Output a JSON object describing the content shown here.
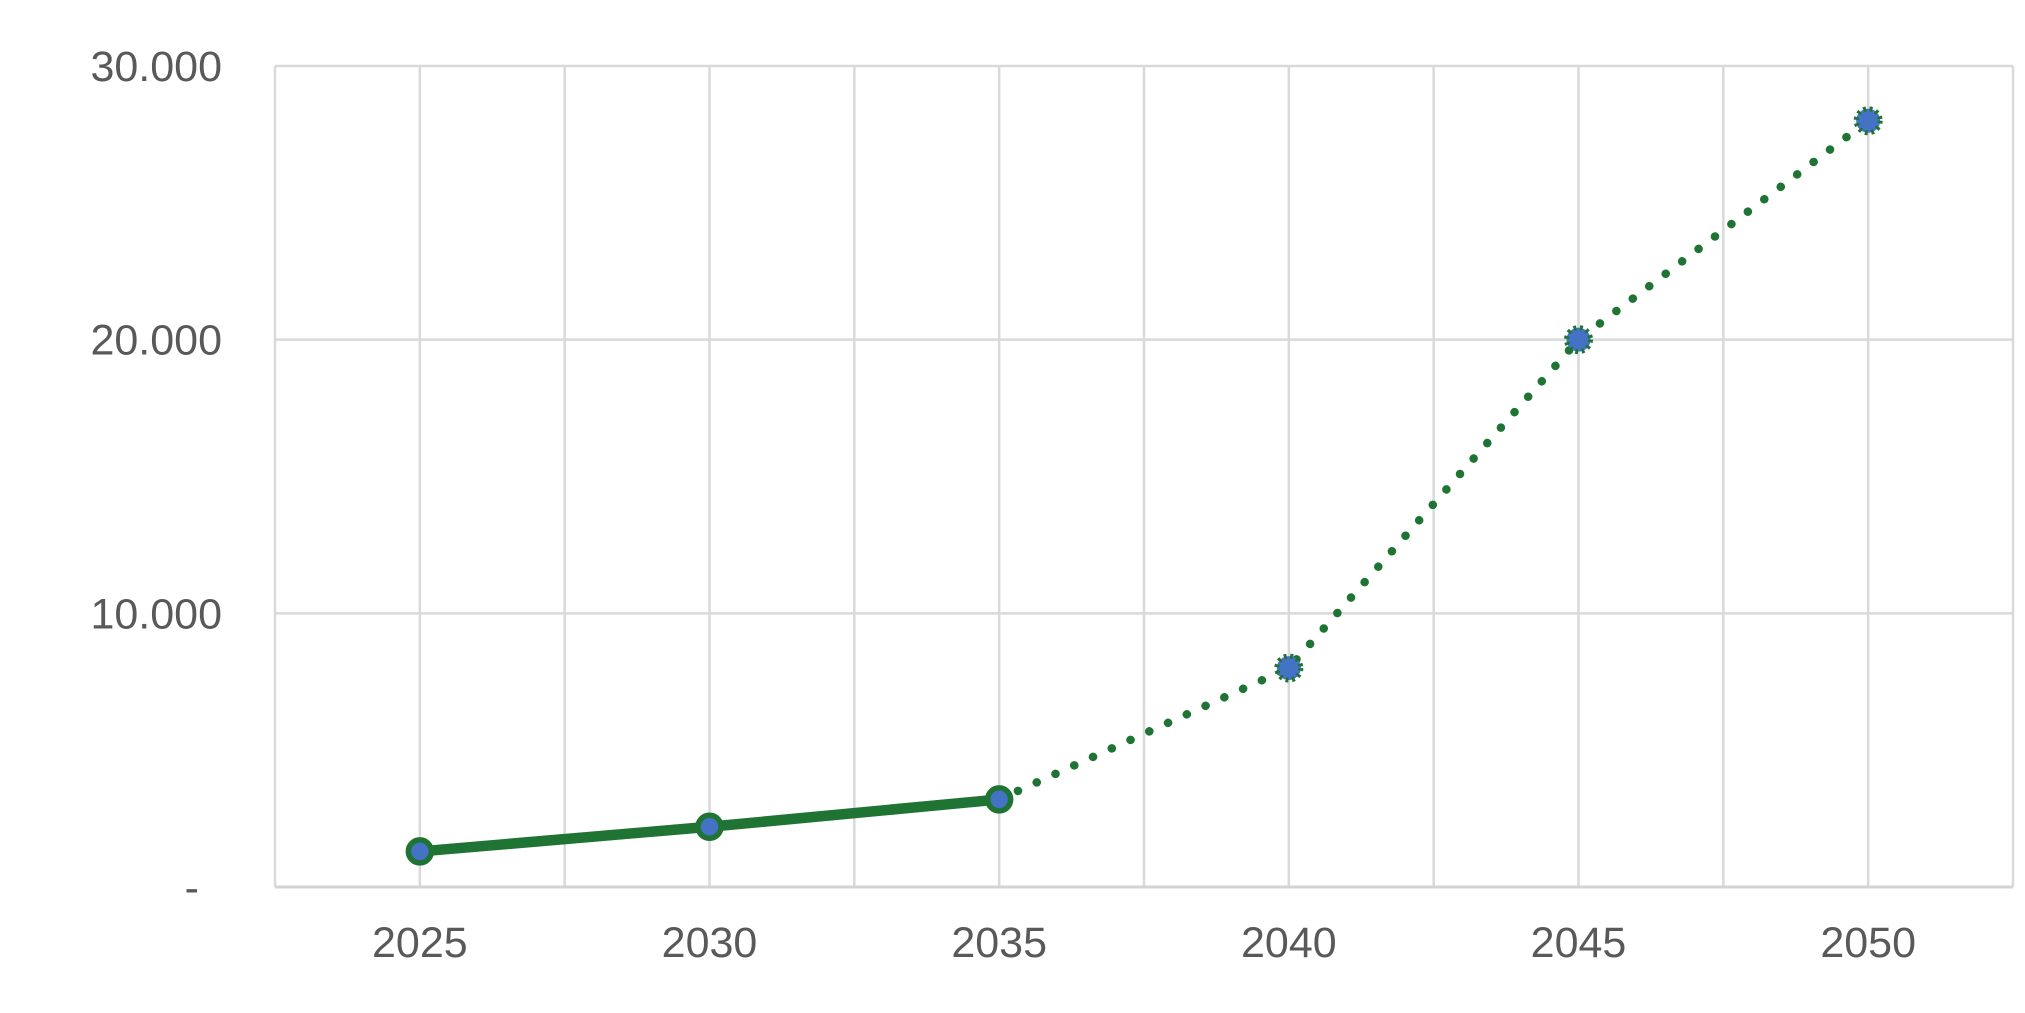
{
  "chart_data": {
    "type": "line",
    "title": "",
    "categories": [
      "2025",
      "2030",
      "2035",
      "2040",
      "2045",
      "2050"
    ],
    "series": [
      {
        "name": "solid-segment-2025-2035",
        "line_style": "solid",
        "marker_ring": "solid",
        "points": [
          {
            "category": "2025",
            "value": 1300
          },
          {
            "category": "2030",
            "value": 2200
          },
          {
            "category": "2035",
            "value": 3200
          }
        ]
      },
      {
        "name": "dotted-segment-2035-2050",
        "line_style": "dotted",
        "marker_ring": "dotted",
        "points": [
          {
            "category": "2035",
            "value": 3200
          },
          {
            "category": "2040",
            "value": 8000
          },
          {
            "category": "2045",
            "value": 20000
          },
          {
            "category": "2050",
            "value": 28000
          }
        ]
      }
    ],
    "x_axis": {
      "tick_labels": [
        "2025",
        "2030",
        "2035",
        "2040",
        "2045",
        "2050"
      ]
    },
    "y_axis": {
      "min": 0,
      "max": 30000,
      "tick_interval": 10000,
      "tick_labels": [
        {
          "value": 30000,
          "label": "30.000"
        },
        {
          "value": 20000,
          "label": "20.000"
        },
        {
          "value": 10000,
          "label": "10.000"
        },
        {
          "value": 0,
          "label": "-"
        }
      ]
    },
    "legend": "none",
    "grid": {
      "horizontal": true,
      "vertical": true,
      "minor_vertical_between_years": true
    },
    "colors": {
      "line": "#1f7434",
      "marker_fill": "#4472c4",
      "gridline": "#d9d9d9",
      "axis_line": "#d3d3d3",
      "tick_text": "#595959",
      "background": "#ffffff"
    }
  }
}
